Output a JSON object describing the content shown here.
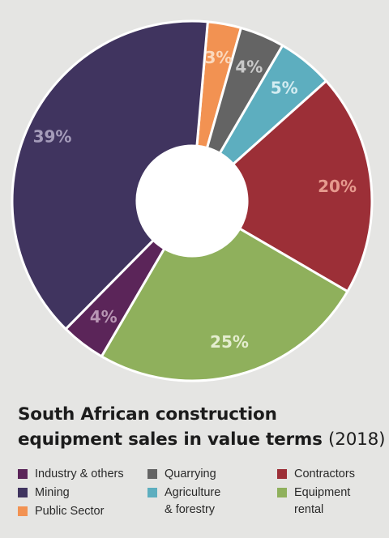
{
  "chart_data": {
    "type": "pie",
    "subtype": "donut",
    "title": "South African construction equipment sales in value terms",
    "title_suffix": "(2018)",
    "slices": [
      {
        "label": "Public Sector",
        "value": 3,
        "display": "3%",
        "color": "#f29252",
        "label_color": "#fbd9bd"
      },
      {
        "label": "Quarrying",
        "value": 4,
        "display": "4%",
        "color": "#646464",
        "label_color": "#c9c9c9"
      },
      {
        "label": "Agriculture & forestry",
        "value": 5,
        "display": "5%",
        "color": "#5daebf",
        "label_color": "#d3ecf1"
      },
      {
        "label": "Contractors",
        "value": 20,
        "display": "20%",
        "color": "#9c2f37",
        "label_color": "#e69a8e"
      },
      {
        "label": "Equipment rental",
        "value": 25,
        "display": "25%",
        "color": "#8fb05c",
        "label_color": "#e4edcf"
      },
      {
        "label": "Industry & others",
        "value": 4,
        "display": "4%",
        "color": "#5b2559",
        "label_color": "#b896b4"
      },
      {
        "label": "Mining",
        "value": 39,
        "display": "39%",
        "color": "#40345f",
        "label_color": "#a59cba"
      }
    ],
    "legend": [
      {
        "label": "Industry & others",
        "color": "#5b2559"
      },
      {
        "label": "Mining",
        "color": "#40345f"
      },
      {
        "label": "Public Sector",
        "color": "#f29252"
      },
      {
        "label": "Quarrying",
        "color": "#646464"
      },
      {
        "label": "Agriculture\n& forestry",
        "color": "#5daebf"
      },
      {
        "label": "Contractors",
        "color": "#9c2f37"
      },
      {
        "label": "Equipment\nrental",
        "color": "#8fb05c"
      }
    ]
  }
}
